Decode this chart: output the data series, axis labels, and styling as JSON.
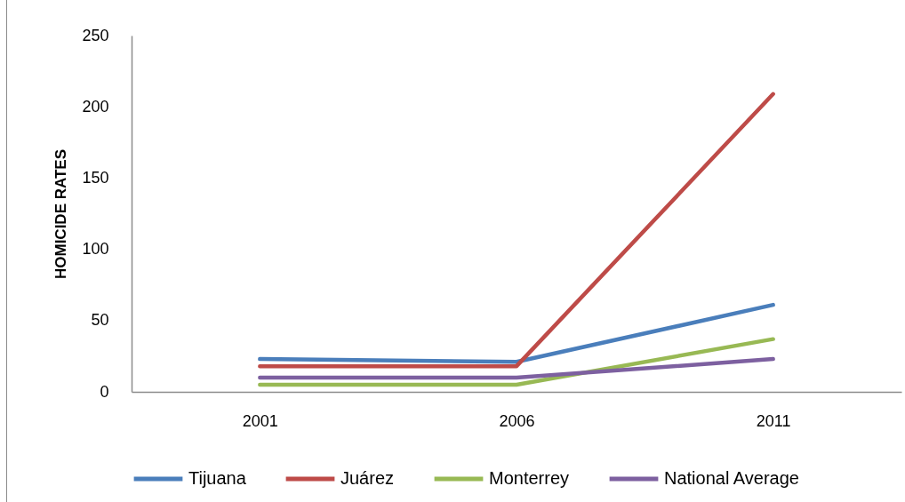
{
  "chart_data": {
    "type": "line",
    "ylabel": "HOMICIDE RATES",
    "categories": [
      "2001",
      "2006",
      "2011"
    ],
    "series": [
      {
        "name": "Tijuana",
        "color": "#4a7ebb",
        "values": [
          23,
          21,
          61
        ]
      },
      {
        "name": "Juárez",
        "color": "#be4b48",
        "values": [
          18,
          18,
          209
        ]
      },
      {
        "name": "Monterrey",
        "color": "#98b954",
        "values": [
          5,
          5,
          37
        ]
      },
      {
        "name": "National Average",
        "color": "#7d60a0",
        "values": [
          10,
          10,
          23
        ]
      }
    ],
    "ylim": [
      0,
      250
    ],
    "yticks": [
      0,
      50,
      100,
      150,
      200,
      250
    ],
    "grid": false,
    "legend": "bottom"
  }
}
